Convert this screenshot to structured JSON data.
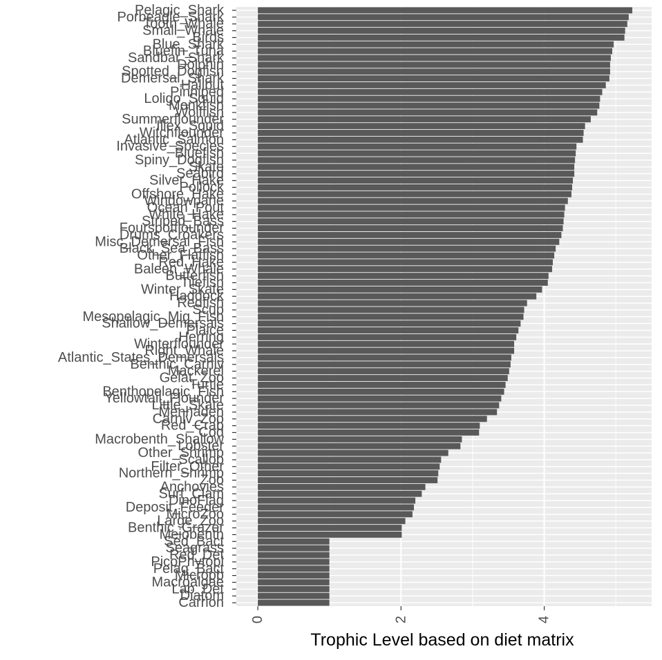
{
  "chart_data": {
    "type": "bar",
    "orientation": "horizontal",
    "xlabel": "Trophic Level based on diet matrix",
    "ylabel": "",
    "xlim": [
      -0.3,
      5.5
    ],
    "x_ticks": [
      0,
      2,
      4
    ],
    "x_tick_labels": [
      "0",
      "2",
      "4"
    ],
    "x_tick_label_rotation": 90,
    "grid": true,
    "legend": "none",
    "bar_color": "#595959",
    "panel_color": "#ebebeb",
    "categories": [
      "Pelagic_Shark",
      "Porbeagle_Shark",
      "Tooth_Whale",
      "Small_Whale",
      "Birds",
      "Blue_Shark",
      "Bluefin_Tuna",
      "Sandbar_Shark",
      "Dolphin",
      "Spotted_Dogfish",
      "Demersal_Shark",
      "Halibut",
      "Pinniped",
      "Loligo_Squid",
      "Monkfish",
      "Wolffish",
      "Summerflounder",
      "Illex_Squid",
      "Witchflounder",
      "Atlantic_Salmon",
      "Invasive_Species",
      "Bluefish",
      "Spiny_Dogfish",
      "Skate",
      "Seabird",
      "Silver_Hake",
      "Pollock",
      "Offshore_Hake",
      "Windowpane",
      "Ocean_Pout",
      "White_Hake",
      "Striped_Bass",
      "Fourspotflounder",
      "Drums_Croakers",
      "Misc_Demersal_Fish",
      "Black_Sea_Bass",
      "Other_Flatfish",
      "Red_Hake",
      "Baleen_Whale",
      "Butterfish",
      "Tilefish",
      "Winter_Skate",
      "Haddock",
      "Redfish",
      "Scup",
      "Mesopelagic_Mig_Fish",
      "Shallow_Demersals",
      "Plaice",
      "Herring",
      "Winterflounder",
      "Right_Whale",
      "Atlantic_States_Demersals",
      "Benthic_Carniv",
      "Mackerel",
      "Gelat_Zoo",
      "Turtle",
      "Benthopelagic_Fish",
      "Yellowtail_Flounder",
      "Little_Skate",
      "Menhaden",
      "Carniv_Zoo",
      "Red_Crab",
      "Cod",
      "Macrobenth_Shallow",
      "Lobster",
      "Other_Shrimp",
      "Scallop",
      "Filter_Other",
      "Northern_Shrimp",
      "Zoo",
      "Anchovies",
      "Surf_Clam",
      "DinoFlag",
      "Deposit_Feeder",
      "MicroZoo",
      "Large_Zoo",
      "Benthic_Grazer",
      "Meiobenth",
      "Sed_Bact",
      "Seagrass",
      "Red_Det",
      "PicoPhytopl",
      "Pelag_Bact",
      "Micropb",
      "Macroalgae",
      "Lab_Det",
      "Diatom",
      "Carrion"
    ],
    "values": [
      5.23,
      5.18,
      5.16,
      5.13,
      5.12,
      4.97,
      4.95,
      4.93,
      4.92,
      4.92,
      4.91,
      4.86,
      4.81,
      4.78,
      4.77,
      4.74,
      4.65,
      4.57,
      4.55,
      4.54,
      4.45,
      4.44,
      4.43,
      4.42,
      4.42,
      4.4,
      4.39,
      4.38,
      4.33,
      4.29,
      4.28,
      4.27,
      4.26,
      4.24,
      4.21,
      4.16,
      4.14,
      4.12,
      4.11,
      4.06,
      4.05,
      3.97,
      3.89,
      3.76,
      3.72,
      3.71,
      3.67,
      3.64,
      3.61,
      3.58,
      3.58,
      3.54,
      3.53,
      3.51,
      3.49,
      3.46,
      3.44,
      3.4,
      3.37,
      3.34,
      3.2,
      3.1,
      3.09,
      2.85,
      2.83,
      2.66,
      2.56,
      2.54,
      2.52,
      2.51,
      2.34,
      2.29,
      2.2,
      2.18,
      2.16,
      2.06,
      2.01,
      2.01,
      1.0,
      1.0,
      1.0,
      1.0,
      1.0,
      1.0,
      1.0,
      1.0,
      1.0,
      1.0
    ]
  }
}
